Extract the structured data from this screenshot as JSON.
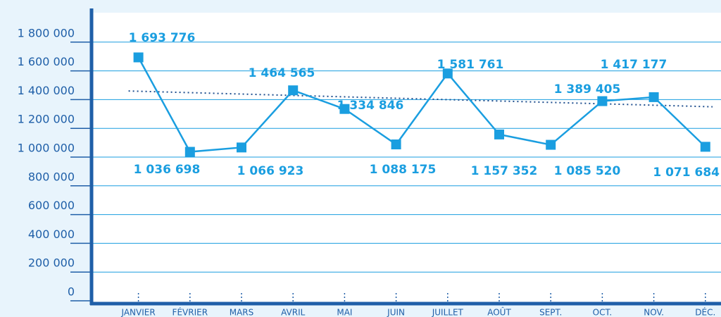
{
  "chart_data": {
    "type": "line",
    "categories": [
      "JANVIER",
      "FÉVRIER",
      "MARS",
      "AVRIL",
      "MAI",
      "JUIN",
      "JUILLET",
      "AOÛT",
      "SEPT.",
      "OCT.",
      "NOV.",
      "DÉC."
    ],
    "series": [
      {
        "color": "#1a9ee0",
        "values": [
          1693776,
          1036698,
          1066923,
          1464565,
          1334846,
          1088175,
          1581761,
          1157352,
          1085520,
          1389405,
          1417177,
          1071684
        ],
        "value_labels": [
          "1 693 776",
          "1 036 698",
          "1 066 923",
          "1 464 565",
          "1 334 846",
          "1 088 175",
          "1 581 761",
          "1 157 352",
          "1 085 520",
          "1 389 405",
          "1 417 177",
          "1 071 684"
        ]
      }
    ],
    "trendline": [
      1460000,
      1350000
    ],
    "ylim": [
      0,
      2000000
    ],
    "yticks": [
      0,
      {
        "value": 200000,
        "label": "200 000"
      },
      {
        "value": 400000,
        "label": "400 000"
      },
      {
        "value": 600000,
        "label": "600 000"
      },
      {
        "value": 800000,
        "label": "800 000"
      },
      {
        "value": 1000000,
        "label": "1 000 000"
      },
      {
        "value": 1200000,
        "label": "1 200 000"
      },
      {
        "value": 1400000,
        "label": "1 400 000"
      },
      {
        "value": 1600000,
        "label": "1 600 000"
      },
      {
        "value": 1800000,
        "label": "1 800 000"
      }
    ],
    "grid": true
  }
}
